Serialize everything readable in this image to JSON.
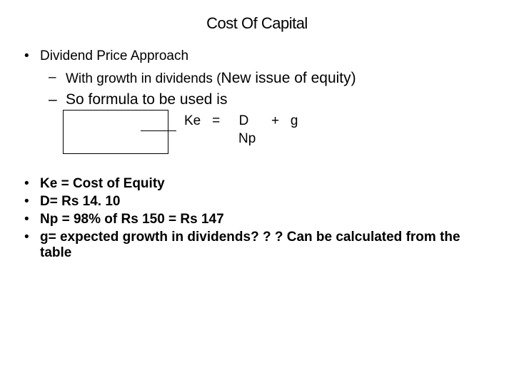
{
  "title": "Cost Of Capital",
  "main_bullet": "Dividend Price Approach",
  "sub_bullet_1_prefix": "With  growth in dividends (",
  "sub_bullet_1_large": "New issue of equity)",
  "sub_bullet_2": "So formula to be used is",
  "formula": {
    "line1": "Ke   =     D      +   g",
    "line2": "Np"
  },
  "definitions": [
    "Ke = Cost of Equity",
    "D= Rs 14. 10",
    "Np = 98% of Rs 150 = Rs 147",
    "g= expected growth in dividends? ? ? Can be calculated from the table"
  ],
  "colors": {
    "background": "#ffffff",
    "text": "#000000",
    "box_border": "#000000"
  }
}
